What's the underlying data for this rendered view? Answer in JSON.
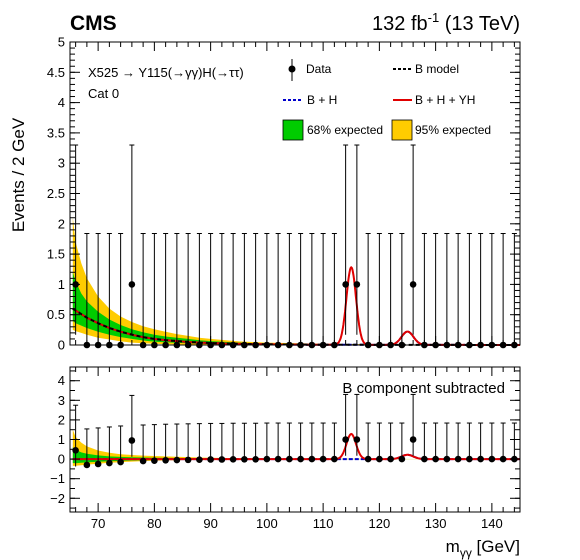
{
  "header": {
    "experiment": "CMS",
    "lumi_value": "132 fb",
    "lumi_exp": "-1",
    "energy": " (13 TeV)"
  },
  "annotations": {
    "process": "X525 → Y115(→γγ)H(→ττ)",
    "category": "Cat 0",
    "subtracted": "B component subtracted"
  },
  "axes": {
    "ylabel": "Events / 2 GeV",
    "xlabel": "mγγ [GeV]"
  },
  "legend": {
    "data": "Data",
    "b_model": "B model",
    "b_h": "B + H",
    "b_h_yh": "B + H + YH",
    "band68": "68% expected",
    "band95": "95% expected"
  },
  "colors": {
    "band68": "#00cc00",
    "band95": "#ffcc00",
    "signal": "#e00000",
    "bh": "#0000cc",
    "bmodel": "#000000"
  },
  "chart_data": [
    {
      "type": "scatter",
      "title": "",
      "xlabel": "",
      "ylabel": "Events / 2 GeV",
      "xlim": [
        65,
        145
      ],
      "ylim": [
        0,
        5
      ],
      "yticks": [
        "0",
        "0.5",
        "1",
        "1.5",
        "2",
        "2.5",
        "3",
        "3.5",
        "4",
        "4.5",
        "5"
      ],
      "xticks": [
        "70",
        "80",
        "90",
        "100",
        "110",
        "120",
        "130",
        "140"
      ],
      "data_points": {
        "x": [
          66,
          68,
          70,
          72,
          74,
          76,
          78,
          80,
          82,
          84,
          86,
          88,
          90,
          92,
          94,
          96,
          98,
          100,
          102,
          104,
          106,
          108,
          110,
          112,
          114,
          116,
          118,
          120,
          122,
          124,
          126,
          128,
          130,
          132,
          134,
          136,
          138,
          140,
          142,
          144
        ],
        "y": [
          1,
          0,
          0,
          0,
          0,
          1,
          0,
          0,
          0,
          0,
          0,
          0,
          0,
          0,
          0,
          0,
          0,
          0,
          0,
          0,
          0,
          0,
          0,
          0,
          1,
          1,
          0,
          0,
          0,
          0,
          1,
          0,
          0,
          0,
          0,
          0,
          0,
          0,
          0,
          0
        ],
        "yerr_up": [
          2.3,
          1.84,
          1.84,
          1.84,
          1.84,
          2.3,
          1.84,
          1.84,
          1.84,
          1.84,
          1.84,
          1.84,
          1.84,
          1.84,
          1.84,
          1.84,
          1.84,
          1.84,
          1.84,
          1.84,
          1.84,
          1.84,
          1.84,
          1.84,
          2.3,
          2.3,
          1.84,
          1.84,
          1.84,
          1.84,
          2.3,
          1.84,
          1.84,
          1.84,
          1.84,
          1.84,
          1.84,
          1.84,
          1.84,
          1.84
        ],
        "yerr_down": [
          0.83,
          0,
          0,
          0,
          0,
          0.83,
          0,
          0,
          0,
          0,
          0,
          0,
          0,
          0,
          0,
          0,
          0,
          0,
          0,
          0,
          0,
          0,
          0,
          0,
          0.83,
          0.83,
          0,
          0,
          0,
          0,
          0.83,
          0,
          0,
          0,
          0,
          0,
          0,
          0,
          0,
          0
        ]
      },
      "b_model": {
        "x": [
          65.5,
          67,
          68,
          70,
          72,
          74,
          76,
          78,
          80,
          82,
          84,
          86,
          88,
          90,
          95,
          100,
          110,
          120,
          130,
          145
        ],
        "y": [
          0.6,
          0.51,
          0.45,
          0.36,
          0.28,
          0.22,
          0.17,
          0.13,
          0.1,
          0.08,
          0.065,
          0.05,
          0.04,
          0.032,
          0.018,
          0.01,
          0.004,
          0.002,
          0.001,
          0.0005
        ]
      },
      "band95": {
        "x": [
          65.5,
          66,
          67,
          68,
          70,
          72,
          74,
          76,
          78,
          80,
          82,
          84,
          86,
          88,
          90,
          95,
          100,
          110,
          120,
          130,
          145
        ],
        "low": [
          0.25,
          0.23,
          0.2,
          0.17,
          0.12,
          0.09,
          0.06,
          0.04,
          0.03,
          0.02,
          0.015,
          0.01,
          0.008,
          0.006,
          0.004,
          0.002,
          0.001,
          0,
          0,
          0,
          0
        ],
        "high": [
          2.1,
          1.7,
          1.35,
          1.1,
          0.8,
          0.6,
          0.47,
          0.38,
          0.31,
          0.26,
          0.22,
          0.18,
          0.15,
          0.12,
          0.1,
          0.06,
          0.04,
          0.02,
          0.01,
          0.005,
          0.002
        ]
      },
      "band68": {
        "x": [
          65.5,
          66,
          67,
          68,
          70,
          72,
          74,
          76,
          78,
          80,
          82,
          84,
          86,
          88,
          90,
          95,
          100,
          110,
          120,
          130,
          145
        ],
        "low": [
          0.4,
          0.36,
          0.32,
          0.28,
          0.22,
          0.17,
          0.13,
          0.1,
          0.075,
          0.055,
          0.045,
          0.035,
          0.028,
          0.022,
          0.017,
          0.009,
          0.005,
          0.002,
          0.001,
          0,
          0
        ],
        "high": [
          1.2,
          1.05,
          0.85,
          0.72,
          0.55,
          0.42,
          0.33,
          0.26,
          0.21,
          0.17,
          0.14,
          0.12,
          0.1,
          0.08,
          0.065,
          0.04,
          0.025,
          0.012,
          0.006,
          0.003,
          0.001
        ]
      },
      "signal_peak": {
        "mean": 115,
        "sigma": 0.85,
        "amp": 1.28
      },
      "h_peak": {
        "mean": 125,
        "sigma": 1.05,
        "amp": 0.22
      }
    },
    {
      "type": "scatter",
      "title": "",
      "xlabel": "mγγ [GeV]",
      "ylabel": "",
      "xlim": [
        65,
        145
      ],
      "ylim": [
        -2.7,
        4.7
      ],
      "yticks": [
        "−2",
        "−1",
        "0",
        "1",
        "2",
        "3",
        "4"
      ],
      "xticks": [
        "70",
        "80",
        "90",
        "100",
        "110",
        "120",
        "130",
        "140"
      ],
      "data_points": {
        "x": [
          66,
          68,
          70,
          72,
          74,
          76,
          78,
          80,
          82,
          84,
          86,
          88,
          90,
          92,
          94,
          96,
          98,
          100,
          102,
          104,
          106,
          108,
          110,
          112,
          114,
          116,
          118,
          120,
          122,
          124,
          126,
          128,
          130,
          132,
          134,
          136,
          138,
          140,
          142,
          144
        ],
        "y": [
          0.45,
          -0.3,
          -0.25,
          -0.2,
          -0.15,
          0.95,
          -0.1,
          -0.08,
          -0.06,
          -0.05,
          -0.04,
          -0.03,
          -0.02,
          -0.02,
          -0.01,
          -0.01,
          -0.01,
          0,
          0,
          0,
          0,
          0,
          0,
          0,
          1.0,
          1.0,
          0,
          0,
          0,
          0,
          1.0,
          0,
          0,
          0,
          0,
          0,
          0,
          0,
          0,
          0
        ],
        "yerr_up": [
          2.3,
          1.84,
          1.84,
          1.84,
          1.84,
          2.3,
          1.84,
          1.84,
          1.84,
          1.84,
          1.84,
          1.84,
          1.84,
          1.84,
          1.84,
          1.84,
          1.84,
          1.84,
          1.84,
          1.84,
          1.84,
          1.84,
          1.84,
          1.84,
          2.3,
          2.3,
          1.84,
          1.84,
          1.84,
          1.84,
          2.3,
          1.84,
          1.84,
          1.84,
          1.84,
          1.84,
          1.84,
          1.84,
          1.84,
          1.84
        ],
        "yerr_down": [
          0.83,
          0,
          0,
          0,
          0,
          0.83,
          0,
          0,
          0,
          0,
          0,
          0,
          0,
          0,
          0,
          0,
          0,
          0,
          0,
          0,
          0,
          0,
          0,
          0,
          0.83,
          0.83,
          0,
          0,
          0,
          0,
          0.83,
          0,
          0,
          0,
          0,
          0,
          0,
          0,
          0,
          0
        ]
      }
    }
  ]
}
